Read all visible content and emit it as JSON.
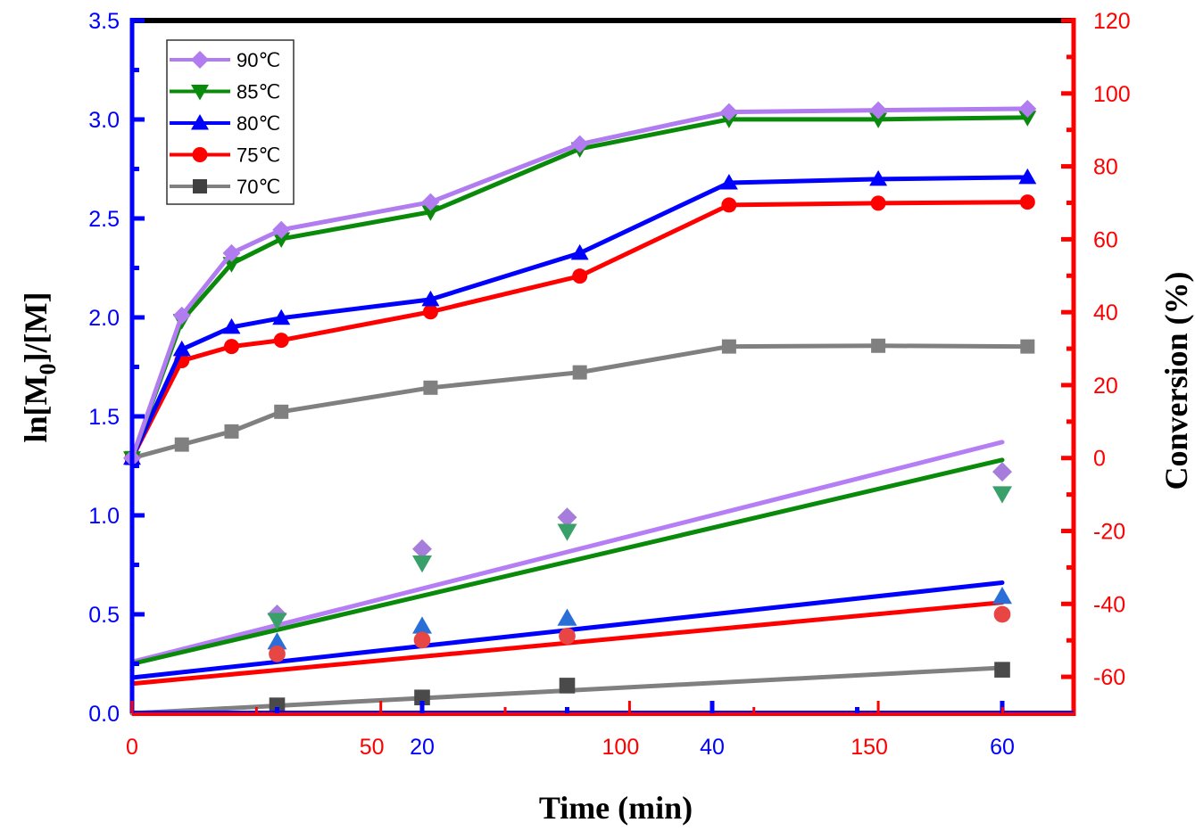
{
  "chart_data": {
    "type": "line",
    "title": "",
    "xlabel": "Time  (min)",
    "ylabel_left": "ln[M0]/[M]",
    "ylabel_left_main": "ln[M",
    "ylabel_left_sub": "0",
    "ylabel_left_tail": "]/[M]",
    "ylabel_right": "Conversion  (%)",
    "legend_position": "top-left",
    "grid": false,
    "x_axis_conversion": {
      "color": "#ff0000",
      "range": [
        0,
        190
      ],
      "ticks": [
        0,
        50,
        100,
        150
      ],
      "tick_labels": [
        "0",
        "50",
        "100",
        "150"
      ]
    },
    "x_axis_kinetics": {
      "color": "#0000ff",
      "range": [
        0,
        65
      ],
      "ticks": [
        0,
        20,
        40,
        60
      ],
      "tick_labels": [
        "0",
        "20",
        "40",
        "60"
      ]
    },
    "y_axis_left": {
      "color": "#0000ff",
      "range": [
        0,
        3.5
      ],
      "ticks": [
        0,
        0.5,
        1.0,
        1.5,
        2.0,
        2.5,
        3.0,
        3.5
      ],
      "tick_labels": [
        "0.0",
        "0.5",
        "1.0",
        "1.5",
        "2.0",
        "2.5",
        "3.0",
        "3.5"
      ]
    },
    "y_axis_right": {
      "color": "#ff0000",
      "range": [
        -70,
        120
      ],
      "ticks": [
        -60,
        -40,
        -20,
        0,
        20,
        40,
        60,
        80,
        100,
        120
      ],
      "tick_labels": [
        "-60",
        "-40",
        "-20",
        "0",
        "20",
        "40",
        "60",
        "80",
        "100",
        "120"
      ]
    },
    "conversion_time": [
      0,
      10,
      20,
      30,
      60,
      90,
      120,
      150,
      180
    ],
    "conversion_series": [
      {
        "name": "90℃",
        "color": "#b07cf0",
        "marker": "diamond",
        "values": [
          0,
          39.1,
          56.2,
          62.6,
          70.2,
          86.1,
          94.9,
          95.4,
          95.8
        ]
      },
      {
        "name": "85℃",
        "color": "#0a8a0a",
        "marker": "triangle-down",
        "values": [
          0,
          37.7,
          53.3,
          60.1,
          67.5,
          84.8,
          92.9,
          92.9,
          93.4
        ]
      },
      {
        "name": "80℃",
        "color": "#0000ff",
        "marker": "triangle-up",
        "values": [
          0,
          29.8,
          35.9,
          38.4,
          43.5,
          56.2,
          75.5,
          76.5,
          77.0
        ]
      },
      {
        "name": "75℃",
        "color": "#ff0000",
        "marker": "circle",
        "values": [
          0,
          26.7,
          30.6,
          32.3,
          40.1,
          49.9,
          69.4,
          69.9,
          70.2
        ]
      },
      {
        "name": "70℃",
        "color": "#808080",
        "marker": "square",
        "values": [
          0,
          3.7,
          7.3,
          12.7,
          19.3,
          23.5,
          30.6,
          30.8,
          30.6
        ]
      }
    ],
    "kinetics_time": [
      10,
      20,
      30,
      60
    ],
    "kinetics_series": [
      {
        "name": "90℃",
        "point_color": "#a77ddb",
        "line_color": "#b57ef5",
        "marker": "diamond",
        "values": [
          0.5,
          0.83,
          0.99,
          1.22
        ],
        "fit": [
          0.26,
          1.37
        ]
      },
      {
        "name": "85℃",
        "point_color": "#3aa06a",
        "line_color": "#0a8a0a",
        "marker": "triangle-down",
        "values": [
          0.47,
          0.76,
          0.92,
          1.11
        ],
        "fit": [
          0.25,
          1.28
        ]
      },
      {
        "name": "80℃",
        "point_color": "#2a6fd8",
        "line_color": "#0000ff",
        "marker": "triangle-up",
        "values": [
          0.36,
          0.44,
          0.48,
          0.59
        ],
        "fit": [
          0.18,
          0.66
        ]
      },
      {
        "name": "75℃",
        "point_color": "#e84545",
        "line_color": "#ff0000",
        "marker": "circle",
        "values": [
          0.3,
          0.37,
          0.39,
          0.5
        ],
        "fit": [
          0.15,
          0.56
        ]
      },
      {
        "name": "70℃",
        "point_color": "#4a4a4a",
        "line_color": "#808080",
        "marker": "square",
        "values": [
          0.04,
          0.08,
          0.14,
          0.22
        ],
        "fit": [
          0.0,
          0.23
        ]
      }
    ],
    "kinetics_fit_x": [
      0,
      60
    ],
    "legend": [
      "90℃",
      "85℃",
      "80℃",
      "75℃",
      "70℃"
    ]
  }
}
